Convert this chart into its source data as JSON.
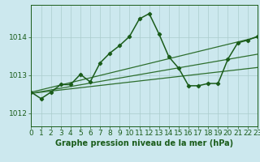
{
  "title": "Graphe pression niveau de la mer (hPa)",
  "background_color": "#cce8ee",
  "grid_color": "#aacccc",
  "line_color_dark": "#1a5c1a",
  "line_color_mid": "#2d6e2d",
  "xlabel_fontsize": 6.5,
  "ylabel_fontsize": 6.5,
  "title_fontsize": 7.0,
  "xmin": 0,
  "xmax": 23,
  "ymin": 1011.65,
  "ymax": 1014.85,
  "yticks": [
    1012,
    1013,
    1014
  ],
  "xtick_labels": [
    "0",
    "1",
    "2",
    "3",
    "4",
    "5",
    "6",
    "7",
    "8",
    "9",
    "10",
    "11",
    "12",
    "13",
    "14",
    "15",
    "16",
    "17",
    "18",
    "19",
    "20",
    "21",
    "22",
    "23"
  ],
  "series": [
    {
      "x": [
        0,
        23
      ],
      "y": [
        1012.55,
        1014.0
      ],
      "color": "#2d6e2d",
      "lw": 0.9,
      "ls": "-",
      "marker": "None",
      "ms": 0,
      "zorder": 2
    },
    {
      "x": [
        0,
        23
      ],
      "y": [
        1012.52,
        1013.55
      ],
      "color": "#2d6e2d",
      "lw": 0.9,
      "ls": "-",
      "marker": "None",
      "ms": 0,
      "zorder": 2
    },
    {
      "x": [
        0,
        23
      ],
      "y": [
        1012.52,
        1013.2
      ],
      "color": "#2d6e2d",
      "lw": 0.9,
      "ls": "-",
      "marker": "None",
      "ms": 0,
      "zorder": 2
    },
    {
      "x": [
        0,
        1,
        2,
        3,
        4,
        5,
        6,
        7,
        8,
        9,
        10,
        11,
        12,
        13,
        14,
        15,
        16,
        17,
        18,
        19,
        20,
        21,
        22,
        23
      ],
      "y": [
        1012.55,
        1012.38,
        1012.55,
        1012.75,
        1012.75,
        1013.02,
        1012.82,
        1013.32,
        1013.58,
        1013.78,
        1014.02,
        1014.48,
        1014.62,
        1014.08,
        1013.48,
        1013.18,
        1012.72,
        1012.72,
        1012.78,
        1012.78,
        1013.42,
        1013.85,
        1013.92,
        1014.02
      ],
      "color": "#1a5c1a",
      "lw": 1.1,
      "ls": "-",
      "marker": "D",
      "ms": 2.2,
      "zorder": 5
    }
  ]
}
